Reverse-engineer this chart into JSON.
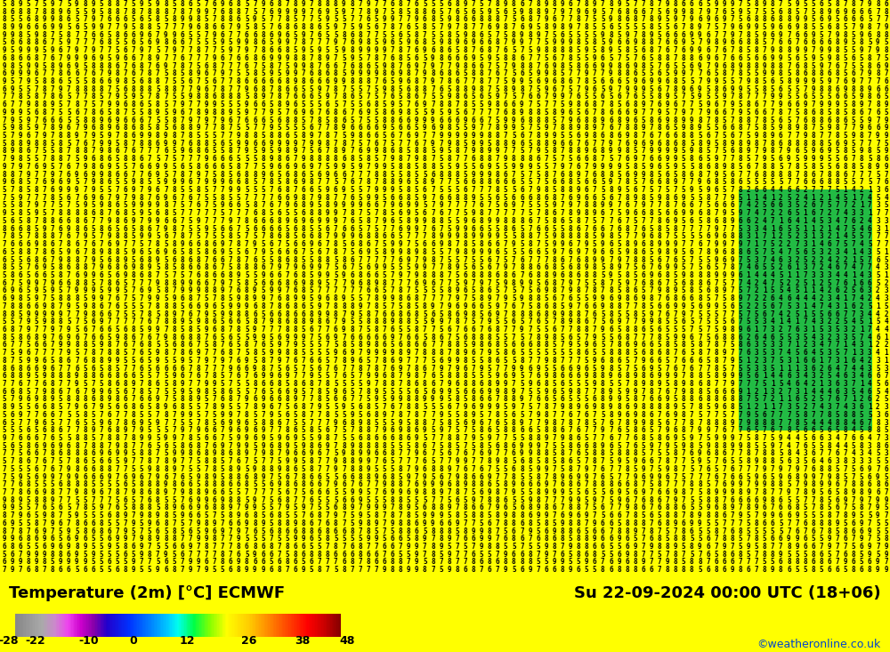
{
  "title_left": "Temperature (2m) [°C] ECMWF",
  "title_right": "Su 22-09-2024 00:00 UTC (18+06)",
  "watermark": "©weatheronline.co.uk",
  "colorbar_ticks": [
    -28,
    -22,
    -10,
    0,
    12,
    26,
    38,
    48
  ],
  "colorbar_colors": [
    "#888888",
    "#aaaaaa",
    "#cccccc",
    "#ee88ee",
    "#cc44cc",
    "#8800aa",
    "#0000ff",
    "#0044ff",
    "#0088ff",
    "#00ccff",
    "#00ffcc",
    "#00ff44",
    "#44ff00",
    "#ccff00",
    "#ffff00",
    "#ffcc00",
    "#ff8800",
    "#ff4400",
    "#ff0000",
    "#cc0000",
    "#880000"
  ],
  "bg_color": "#ffff00",
  "grid_color": "#cccc00",
  "text_color": "#000000",
  "map_text_color": "#000000",
  "map_bg": "#ffdd00",
  "green_patch_color": "#00cc44",
  "blue_patch_color": "#0044ff"
}
